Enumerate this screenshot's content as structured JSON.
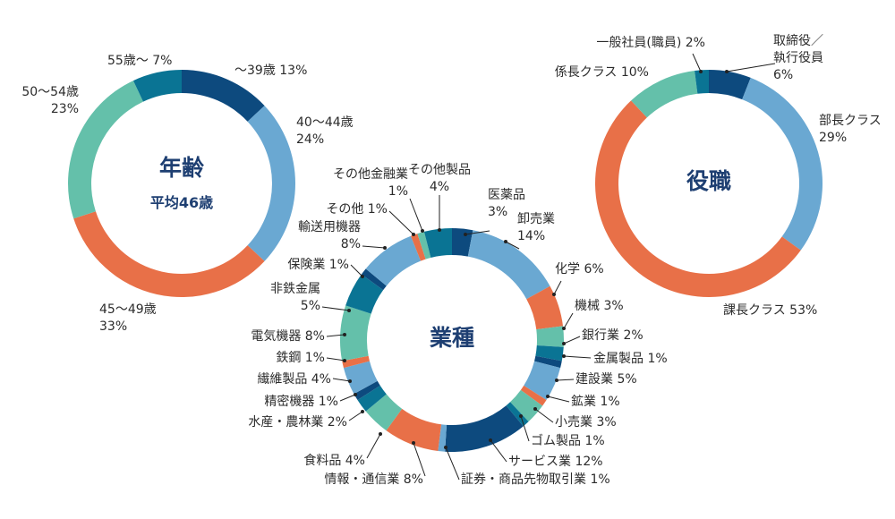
{
  "chart_data": [
    {
      "type": "pie",
      "title": "年齢",
      "subtitle": "平均46歳",
      "categories": [
        "〜39歳",
        "40〜44歳",
        "45〜49歳",
        "50〜54歳",
        "55歳〜"
      ],
      "values": [
        13,
        24,
        33,
        23,
        7
      ],
      "colors": [
        "#0d4a7e",
        "#6aa8d2",
        "#e87048",
        "#64c0aa",
        "#0a7494"
      ],
      "labels": [
        [
          "〜39歳 13%"
        ],
        [
          "40〜44歳",
          "24%"
        ],
        [
          "45〜49歳",
          "33%"
        ],
        [
          "50〜54歳",
          "23%"
        ],
        [
          "55歳〜 7%"
        ]
      ]
    },
    {
      "type": "pie",
      "title": "業種",
      "categories": [
        "医薬品",
        "卸売業",
        "化学",
        "機械",
        "銀行業",
        "金属製品",
        "建設業",
        "鉱業",
        "小売業",
        "ゴム製品",
        "サービス業",
        "証券・商品先物取引業",
        "情報・通信業",
        "食料品",
        "水産・農林業",
        "精密機器",
        "繊維製品",
        "鉄鋼",
        "電気機器",
        "非鉄金属",
        "保険業",
        "輸送用機器",
        "その他",
        "その他金融業",
        "その他製品"
      ],
      "values": [
        3,
        14,
        6,
        3,
        2,
        1,
        5,
        1,
        3,
        1,
        12,
        1,
        8,
        4,
        2,
        1,
        4,
        1,
        8,
        5,
        1,
        8,
        1,
        1,
        4
      ],
      "colors": [
        "#0d4a7e",
        "#6aa8d2",
        "#e87048",
        "#64c0aa",
        "#0a7494",
        "#0d4a7e",
        "#6aa8d2",
        "#e87048",
        "#64c0aa",
        "#0a7494",
        "#0d4a7e",
        "#6aa8d2",
        "#e87048",
        "#64c0aa",
        "#0a7494",
        "#0d4a7e",
        "#6aa8d2",
        "#e87048",
        "#64c0aa",
        "#0a7494",
        "#0d4a7e",
        "#6aa8d2",
        "#e87048",
        "#64c0aa",
        "#0a7494"
      ],
      "labels": [
        [
          "医薬品",
          "3%"
        ],
        [
          "卸売業",
          "14%"
        ],
        [
          "化学 6%"
        ],
        [
          "機械 3%"
        ],
        [
          "銀行業 2%"
        ],
        [
          "金属製品 1%"
        ],
        [
          "建設業 5%"
        ],
        [
          "鉱業 1%"
        ],
        [
          "小売業 3%"
        ],
        [
          "ゴム製品 1%"
        ],
        [
          "サービス業 12%"
        ],
        [
          "証券・商品先物取引業 1%"
        ],
        [
          "情報・通信業 8%"
        ],
        [
          "食料品 4%"
        ],
        [
          "水産・農林業 2%"
        ],
        [
          "精密機器 1%"
        ],
        [
          "繊維製品 4%"
        ],
        [
          "鉄鋼 1%"
        ],
        [
          "電気機器 8%"
        ],
        [
          "非鉄金属",
          "5%"
        ],
        [
          "保険業 1%"
        ],
        [
          "輸送用機器",
          "8%"
        ],
        [
          "その他 1%"
        ],
        [
          "その他金融業",
          "1%"
        ],
        [
          "その他製品",
          "4%"
        ]
      ]
    },
    {
      "type": "pie",
      "title": "役職",
      "categories": [
        "取締役／執行役員",
        "部長クラス",
        "課長クラス",
        "係長クラス",
        "一般社員(職員)"
      ],
      "values": [
        6,
        29,
        53,
        10,
        2
      ],
      "colors": [
        "#0d4a7e",
        "#6aa8d2",
        "#e87048",
        "#64c0aa",
        "#0a7494"
      ],
      "labels": [
        [
          "取締役／",
          "執行役員",
          "6%"
        ],
        [
          "部長クラス",
          "29%"
        ],
        [
          "課長クラス 53%"
        ],
        [
          "係長クラス 10%"
        ],
        [
          "一般社員(職員) 2%"
        ]
      ]
    }
  ]
}
